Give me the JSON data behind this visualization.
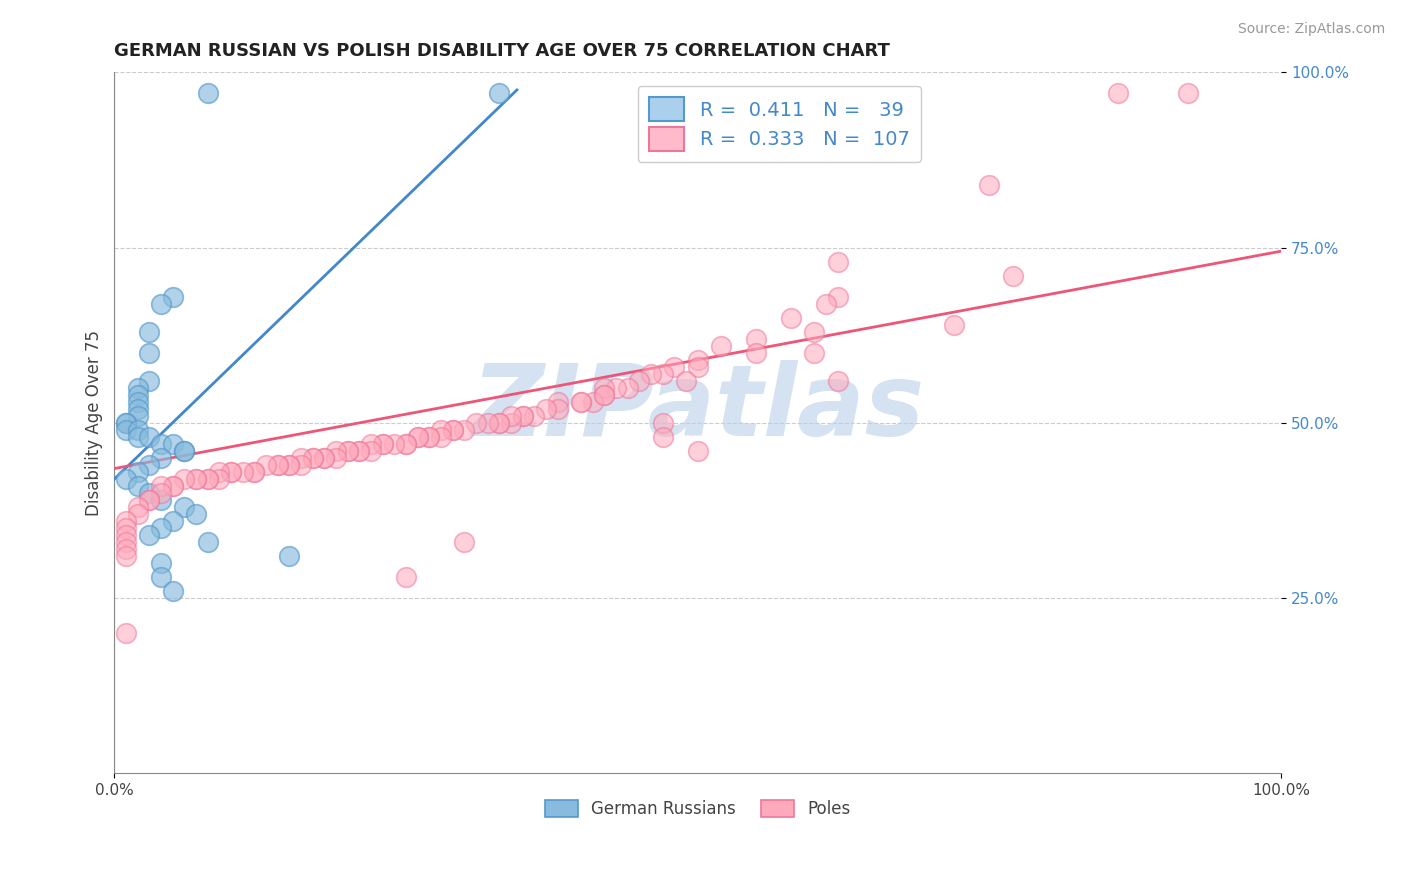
{
  "title": "GERMAN RUSSIAN VS POLISH DISABILITY AGE OVER 75 CORRELATION CHART",
  "source": "Source: ZipAtlas.com",
  "ylabel": "Disability Age Over 75",
  "xlim": [
    0.0,
    1.0
  ],
  "ylim": [
    0.0,
    1.0
  ],
  "ytick_positions": [
    0.25,
    0.5,
    0.75,
    1.0
  ],
  "ytick_labels": [
    "25.0%",
    "50.0%",
    "75.0%",
    "100.0%"
  ],
  "watermark": "ZIPatlas",
  "watermark_color": "#b8d0e8",
  "legend_r_blue": "0.411",
  "legend_n_blue": "39",
  "legend_r_pink": "0.333",
  "legend_n_pink": "107",
  "gr_scatter_x": [
    0.08,
    0.33,
    0.05,
    0.04,
    0.03,
    0.03,
    0.03,
    0.02,
    0.02,
    0.02,
    0.02,
    0.02,
    0.01,
    0.01,
    0.01,
    0.02,
    0.02,
    0.03,
    0.04,
    0.05,
    0.06,
    0.06,
    0.04,
    0.03,
    0.02,
    0.01,
    0.02,
    0.03,
    0.04,
    0.06,
    0.07,
    0.05,
    0.04,
    0.03,
    0.08,
    0.15,
    0.04,
    0.04,
    0.05
  ],
  "gr_scatter_y": [
    0.97,
    0.97,
    0.68,
    0.67,
    0.63,
    0.6,
    0.56,
    0.55,
    0.54,
    0.53,
    0.52,
    0.51,
    0.5,
    0.5,
    0.49,
    0.49,
    0.48,
    0.48,
    0.47,
    0.47,
    0.46,
    0.46,
    0.45,
    0.44,
    0.43,
    0.42,
    0.41,
    0.4,
    0.39,
    0.38,
    0.37,
    0.36,
    0.35,
    0.34,
    0.33,
    0.31,
    0.3,
    0.28,
    0.26
  ],
  "poles_scatter_x": [
    0.92,
    0.86,
    0.75,
    0.62,
    0.62,
    0.6,
    0.58,
    0.55,
    0.55,
    0.52,
    0.5,
    0.5,
    0.48,
    0.47,
    0.46,
    0.45,
    0.44,
    0.43,
    0.42,
    0.42,
    0.41,
    0.4,
    0.4,
    0.38,
    0.38,
    0.37,
    0.36,
    0.35,
    0.35,
    0.34,
    0.34,
    0.33,
    0.33,
    0.32,
    0.31,
    0.3,
    0.29,
    0.29,
    0.28,
    0.28,
    0.27,
    0.27,
    0.26,
    0.26,
    0.25,
    0.25,
    0.24,
    0.23,
    0.23,
    0.22,
    0.22,
    0.21,
    0.21,
    0.2,
    0.2,
    0.19,
    0.19,
    0.18,
    0.18,
    0.17,
    0.17,
    0.16,
    0.16,
    0.15,
    0.15,
    0.14,
    0.14,
    0.13,
    0.12,
    0.12,
    0.11,
    0.1,
    0.1,
    0.09,
    0.09,
    0.08,
    0.08,
    0.07,
    0.07,
    0.06,
    0.05,
    0.05,
    0.04,
    0.04,
    0.03,
    0.03,
    0.02,
    0.02,
    0.01,
    0.01,
    0.01,
    0.01,
    0.01,
    0.01,
    0.01,
    0.49,
    0.61,
    0.77,
    0.3,
    0.42,
    0.6,
    0.47,
    0.47,
    0.25,
    0.72,
    0.5,
    0.62
  ],
  "poles_scatter_y": [
    0.97,
    0.97,
    0.84,
    0.73,
    0.68,
    0.63,
    0.65,
    0.62,
    0.6,
    0.61,
    0.59,
    0.58,
    0.58,
    0.57,
    0.57,
    0.56,
    0.55,
    0.55,
    0.55,
    0.54,
    0.53,
    0.53,
    0.53,
    0.53,
    0.52,
    0.52,
    0.51,
    0.51,
    0.51,
    0.5,
    0.51,
    0.5,
    0.5,
    0.5,
    0.5,
    0.49,
    0.49,
    0.49,
    0.49,
    0.48,
    0.48,
    0.48,
    0.48,
    0.48,
    0.47,
    0.47,
    0.47,
    0.47,
    0.47,
    0.47,
    0.46,
    0.46,
    0.46,
    0.46,
    0.46,
    0.46,
    0.45,
    0.45,
    0.45,
    0.45,
    0.45,
    0.45,
    0.44,
    0.44,
    0.44,
    0.44,
    0.44,
    0.44,
    0.43,
    0.43,
    0.43,
    0.43,
    0.43,
    0.43,
    0.42,
    0.42,
    0.42,
    0.42,
    0.42,
    0.42,
    0.41,
    0.41,
    0.41,
    0.4,
    0.39,
    0.39,
    0.38,
    0.37,
    0.36,
    0.35,
    0.34,
    0.33,
    0.32,
    0.31,
    0.2,
    0.56,
    0.67,
    0.71,
    0.33,
    0.54,
    0.6,
    0.5,
    0.48,
    0.28,
    0.64,
    0.46,
    0.56
  ],
  "blue_line_x0": 0.0,
  "blue_line_y0": 0.42,
  "blue_line_x1": 0.345,
  "blue_line_y1": 0.975,
  "pink_line_x0": 0.0,
  "pink_line_y0": 0.435,
  "pink_line_x1": 1.0,
  "pink_line_y1": 0.745,
  "blue_scatter_color": "#88bbdd",
  "blue_scatter_edge": "#5599cc",
  "pink_scatter_color": "#ffaabc",
  "pink_scatter_edge": "#ee7799",
  "blue_line_color": "#4488cc",
  "pink_line_color": "#ee5577",
  "blue_dashed_color": "#aaccdd",
  "grid_color": "#cccccc",
  "tick_label_color": "#4488cc",
  "title_color": "#222222",
  "source_color": "#999999"
}
